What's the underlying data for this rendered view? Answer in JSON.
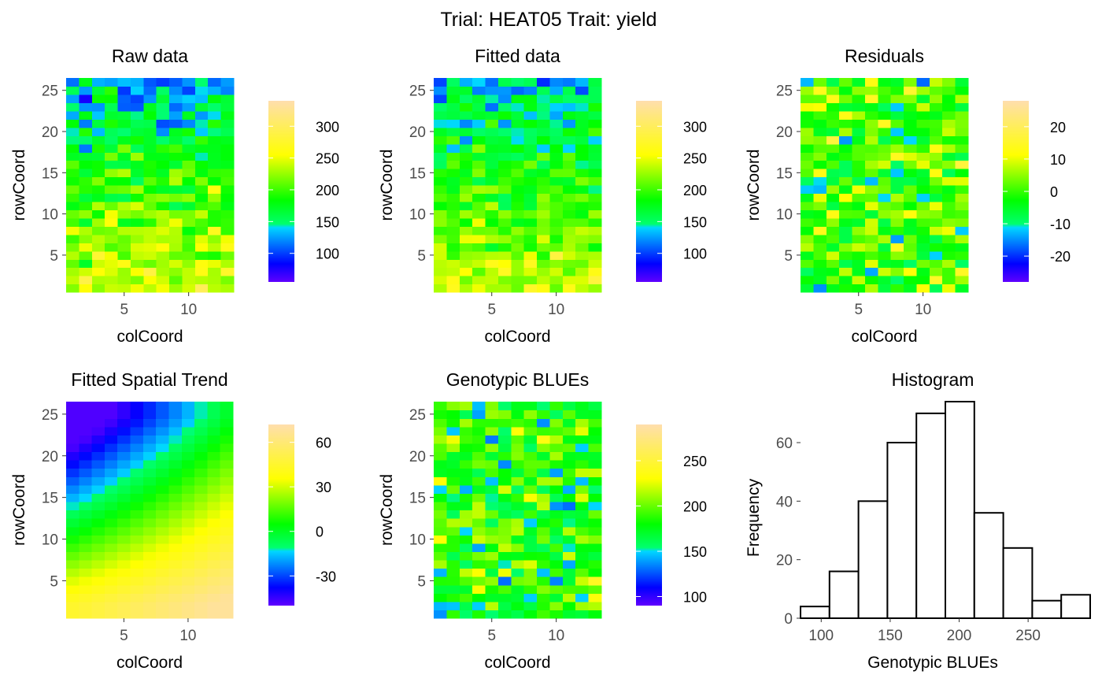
{
  "title": "Trial: HEAT05 Trait: yield",
  "chart_data": [
    {
      "type": "heatmap",
      "title": "Raw data",
      "xlabel": "colCoord",
      "ylabel": "rowCoord",
      "x_ticks": [
        5,
        10
      ],
      "y_ticks": [
        5,
        10,
        15,
        20,
        25
      ],
      "ncols": 13,
      "nrows": 26,
      "value_range": [
        55,
        340
      ],
      "legend_ticks": [
        100,
        150,
        200,
        250,
        300
      ],
      "trend_top": 130,
      "trend_bottom": 250,
      "noise": 40,
      "seed": 11
    },
    {
      "type": "heatmap",
      "title": "Fitted data",
      "xlabel": "colCoord",
      "ylabel": "rowCoord",
      "x_ticks": [
        5,
        10
      ],
      "y_ticks": [
        5,
        10,
        15,
        20,
        25
      ],
      "ncols": 13,
      "nrows": 26,
      "value_range": [
        55,
        340
      ],
      "legend_ticks": [
        100,
        150,
        200,
        250,
        300
      ],
      "trend_top": 135,
      "trend_bottom": 245,
      "noise": 35,
      "seed": 23
    },
    {
      "type": "heatmap",
      "title": "Residuals",
      "xlabel": "colCoord",
      "ylabel": "rowCoord",
      "x_ticks": [
        5,
        10
      ],
      "y_ticks": [
        5,
        10,
        15,
        20,
        25
      ],
      "ncols": 13,
      "nrows": 26,
      "value_range": [
        -28,
        28
      ],
      "legend_ticks": [
        -20,
        -10,
        0,
        10,
        20
      ],
      "trend_top": 0,
      "trend_bottom": 0,
      "noise": 11,
      "seed": 37
    },
    {
      "type": "heatmap",
      "title": "Fitted Spatial Trend",
      "xlabel": "colCoord",
      "ylabel": "rowCoord",
      "x_ticks": [
        5,
        10
      ],
      "y_ticks": [
        5,
        10,
        15,
        20,
        25
      ],
      "ncols": 13,
      "nrows": 26,
      "value_range": [
        -50,
        72
      ],
      "legend_ticks": [
        -30,
        0,
        30,
        60
      ],
      "smooth": true
    },
    {
      "type": "heatmap",
      "title": "Genotypic BLUEs",
      "xlabel": "colCoord",
      "ylabel": "rowCoord",
      "x_ticks": [
        5,
        10
      ],
      "y_ticks": [
        5,
        10,
        15,
        20,
        25
      ],
      "ncols": 13,
      "nrows": 26,
      "value_range": [
        90,
        290
      ],
      "legend_ticks": [
        100,
        150,
        200,
        250
      ],
      "trend_top": 185,
      "trend_bottom": 185,
      "noise": 38,
      "seed": 53
    },
    {
      "type": "bar",
      "title": "Histogram",
      "xlabel": "Genotypic BLUEs",
      "ylabel": "Frequency",
      "bin_edges": [
        85,
        106,
        127,
        148,
        169,
        190,
        211,
        232,
        253,
        274,
        295
      ],
      "counts": [
        4,
        16,
        40,
        60,
        70,
        74,
        36,
        24,
        6,
        8
      ],
      "x_ticks": [
        100,
        150,
        200,
        250
      ],
      "y_ticks": [
        0,
        20,
        40,
        60
      ],
      "xlim": [
        85,
        295
      ],
      "ylim": [
        0,
        74
      ]
    }
  ]
}
